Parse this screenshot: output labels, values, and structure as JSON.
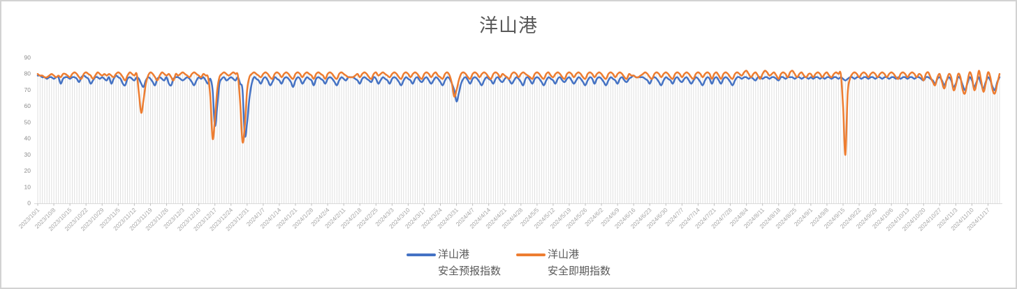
{
  "chart_title": "洋山港",
  "legend": {
    "items": [
      {
        "name": "洋山港 安全预报指数",
        "line1": "洋山港",
        "line2": "安全预报指数",
        "color": "#4472C4"
      },
      {
        "name": "洋山港 安全即期指数",
        "line1": "洋山港",
        "line2": "安全即期指数",
        "color": "#ED7D31"
      }
    ]
  },
  "chart_data": {
    "type": "line",
    "title": "洋山港",
    "legend_position": "bottom",
    "grid": "vertical drop line from each daily point to x-axis, no horizontal gridlines",
    "y_axis": {
      "ticks": [
        0,
        10,
        20,
        30,
        40,
        50,
        60,
        70,
        80,
        90
      ],
      "range": [
        0,
        90
      ]
    },
    "x_axis": {
      "tick_interval_days": 7,
      "points_per_series": 419,
      "tick_labels": [
        "2023/10/1",
        "2023/10/8",
        "2023/10/15",
        "2023/10/22",
        "2023/10/29",
        "2023/11/5",
        "2023/11/12",
        "2023/11/19",
        "2023/11/26",
        "2023/12/3",
        "2023/12/10",
        "2023/12/17",
        "2023/12/24",
        "2023/12/31",
        "2024/1/7",
        "2024/1/14",
        "2024/1/21",
        "2024/1/28",
        "2024/2/4",
        "2024/2/11",
        "2024/2/18",
        "2024/2/25",
        "2024/3/3",
        "2024/3/10",
        "2024/3/17",
        "2024/3/24",
        "2024/3/31",
        "2024/4/7",
        "2024/4/14",
        "2024/4/21",
        "2024/4/28",
        "2024/5/5",
        "2024/5/12",
        "2024/5/19",
        "2024/5/26",
        "2024/6/2",
        "2024/6/9",
        "2024/6/16",
        "2024/6/23",
        "2024/6/30",
        "2024/7/7",
        "2024/7/14",
        "2024/7/21",
        "2024/7/28",
        "2024/8/4",
        "2024/8/11",
        "2024/8/18",
        "2024/8/25",
        "2024/9/1",
        "2024/9/8",
        "2024/9/15",
        "2024/9/22",
        "2024/9/29",
        "2024/10/6",
        "2024/10/13",
        "2024/10/20",
        "2024/10/27",
        "2024/11/3",
        "2024/11/10",
        "2024/11/17"
      ]
    },
    "series": [
      {
        "name": "洋山港 安全预报指数",
        "color": "#4472C4",
        "values": [
          79,
          79,
          78,
          78,
          77,
          78,
          78,
          77,
          78,
          78,
          74,
          77,
          78,
          78,
          77,
          78,
          78,
          77,
          75,
          78,
          79,
          78,
          77,
          74,
          76,
          78,
          78,
          77,
          78,
          77,
          76,
          78,
          74,
          77,
          79,
          78,
          77,
          74,
          73,
          77,
          78,
          77,
          76,
          78,
          77,
          74,
          72,
          76,
          78,
          77,
          75,
          73,
          77,
          78,
          77,
          76,
          78,
          74,
          73,
          77,
          78,
          78,
          77,
          76,
          77,
          78,
          77,
          75,
          73,
          76,
          78,
          77,
          78,
          76,
          74,
          77,
          70,
          48,
          60,
          74,
          77,
          78,
          76,
          77,
          78,
          77,
          76,
          78,
          74,
          70,
          42,
          50,
          65,
          74,
          78,
          77,
          76,
          74,
          77,
          78,
          76,
          73,
          75,
          78,
          77,
          76,
          74,
          77,
          78,
          77,
          75,
          72,
          76,
          78,
          77,
          74,
          76,
          78,
          77,
          76,
          73,
          77,
          78,
          77,
          76,
          74,
          77,
          78,
          77,
          75,
          73,
          76,
          78,
          77,
          76,
          78,
          78,
          78,
          77,
          76,
          74,
          77,
          78,
          77,
          76,
          75,
          78,
          77,
          74,
          76,
          78,
          77,
          76,
          74,
          77,
          78,
          77,
          75,
          73,
          76,
          78,
          77,
          76,
          74,
          77,
          78,
          76,
          75,
          77,
          78,
          76,
          74,
          76,
          78,
          77,
          75,
          73,
          76,
          78,
          77,
          74,
          70,
          63,
          68,
          74,
          77,
          78,
          76,
          74,
          77,
          78,
          77,
          75,
          73,
          76,
          78,
          77,
          76,
          74,
          77,
          78,
          76,
          75,
          77,
          78,
          76,
          74,
          76,
          78,
          77,
          75,
          73,
          77,
          78,
          76,
          74,
          77,
          78,
          77,
          75,
          73,
          76,
          78,
          77,
          76,
          74,
          77,
          78,
          76,
          75,
          77,
          78,
          76,
          74,
          76,
          78,
          77,
          75,
          73,
          76,
          78,
          77,
          74,
          77,
          78,
          77,
          75,
          73,
          76,
          78,
          77,
          76,
          74,
          77,
          78,
          76,
          75,
          77,
          78,
          79,
          78,
          78,
          78,
          78,
          77,
          76,
          74,
          77,
          78,
          77,
          75,
          73,
          76,
          78,
          77,
          76,
          74,
          77,
          78,
          76,
          75,
          77,
          78,
          76,
          74,
          76,
          78,
          77,
          75,
          73,
          76,
          78,
          77,
          74,
          77,
          78,
          76,
          74,
          77,
          78,
          77,
          75,
          73,
          76,
          78,
          78,
          77,
          78,
          78,
          77,
          78,
          77,
          76,
          78,
          78,
          77,
          78,
          78,
          77,
          78,
          78,
          77,
          76,
          78,
          78,
          77,
          78,
          78,
          78,
          77,
          78,
          78,
          77,
          78,
          78,
          77,
          78,
          77,
          78,
          78,
          77,
          78,
          77,
          78,
          78,
          77,
          78,
          78,
          77,
          78,
          77,
          76,
          77,
          78,
          78,
          77,
          78,
          78,
          77,
          78,
          78,
          77,
          78,
          78,
          77,
          78,
          78,
          77,
          78,
          78,
          77,
          78,
          78,
          77,
          78,
          77,
          78,
          78,
          77,
          78,
          78,
          77,
          78,
          78,
          77,
          76,
          78,
          78,
          77,
          76,
          74,
          77,
          78,
          76,
          73,
          76,
          78,
          76,
          72,
          74,
          78,
          77,
          73,
          70,
          74,
          78,
          76,
          72,
          75,
          78,
          74,
          71,
          75,
          78,
          76,
          72,
          70,
          75,
          78
        ]
      },
      {
        "name": "洋山港 安全即期指数",
        "color": "#ED7D31",
        "values": [
          80,
          79,
          79,
          78,
          78,
          79,
          80,
          79,
          78,
          79,
          78,
          80,
          80,
          79,
          78,
          80,
          81,
          80,
          78,
          77,
          80,
          81,
          80,
          79,
          77,
          79,
          81,
          80,
          79,
          80,
          79,
          80,
          79,
          78,
          80,
          81,
          80,
          78,
          76,
          79,
          81,
          80,
          79,
          80,
          68,
          56,
          64,
          74,
          79,
          81,
          80,
          78,
          76,
          79,
          81,
          80,
          79,
          80,
          78,
          76,
          80,
          79,
          80,
          81,
          80,
          79,
          78,
          80,
          81,
          80,
          79,
          78,
          80,
          79,
          78,
          66,
          40,
          52,
          70,
          78,
          80,
          81,
          80,
          79,
          80,
          81,
          80,
          79,
          62,
          38,
          48,
          70,
          78,
          80,
          81,
          80,
          79,
          78,
          80,
          81,
          80,
          78,
          77,
          80,
          81,
          80,
          78,
          80,
          81,
          80,
          78,
          77,
          80,
          81,
          80,
          78,
          80,
          81,
          80,
          79,
          77,
          80,
          81,
          80,
          79,
          77,
          80,
          81,
          80,
          78,
          77,
          80,
          81,
          80,
          79,
          78,
          78,
          78,
          79,
          80,
          78,
          80,
          81,
          80,
          78,
          77,
          80,
          81,
          79,
          80,
          81,
          80,
          79,
          78,
          80,
          81,
          80,
          78,
          77,
          80,
          81,
          80,
          78,
          80,
          81,
          80,
          78,
          77,
          80,
          81,
          80,
          78,
          80,
          81,
          79,
          78,
          77,
          80,
          81,
          79,
          74,
          66,
          70,
          76,
          80,
          81,
          80,
          78,
          77,
          80,
          81,
          80,
          78,
          80,
          81,
          80,
          78,
          77,
          80,
          81,
          80,
          78,
          80,
          79,
          78,
          77,
          80,
          81,
          80,
          78,
          80,
          81,
          80,
          79,
          78,
          77,
          80,
          81,
          80,
          78,
          77,
          80,
          81,
          79,
          78,
          80,
          81,
          80,
          78,
          77,
          80,
          81,
          80,
          78,
          80,
          81,
          80,
          78,
          77,
          80,
          81,
          80,
          78,
          80,
          81,
          80,
          78,
          77,
          80,
          81,
          80,
          78,
          80,
          81,
          80,
          78,
          77,
          80,
          79,
          79,
          78,
          78,
          79,
          80,
          81,
          80,
          78,
          77,
          80,
          81,
          80,
          78,
          80,
          81,
          80,
          78,
          77,
          80,
          81,
          80,
          78,
          80,
          81,
          80,
          78,
          77,
          80,
          81,
          80,
          78,
          80,
          81,
          80,
          77,
          80,
          81,
          79,
          77,
          80,
          81,
          80,
          78,
          77,
          80,
          81,
          80,
          79,
          81,
          82,
          80,
          78,
          80,
          81,
          79,
          77,
          80,
          82,
          81,
          79,
          80,
          81,
          79,
          77,
          80,
          81,
          80,
          78,
          81,
          82,
          80,
          78,
          80,
          81,
          79,
          78,
          80,
          80,
          78,
          80,
          81,
          80,
          78,
          80,
          81,
          79,
          78,
          80,
          81,
          80,
          80,
          60,
          30,
          68,
          77,
          80,
          81,
          80,
          78,
          80,
          81,
          80,
          78,
          80,
          81,
          80,
          78,
          80,
          81,
          80,
          78,
          80,
          81,
          80,
          78,
          77,
          80,
          81,
          80,
          78,
          80,
          81,
          80,
          78,
          80,
          79,
          76,
          80,
          81,
          78,
          75,
          73,
          78,
          80,
          75,
          71,
          76,
          80,
          78,
          70,
          73,
          80,
          78,
          70,
          68,
          75,
          81,
          78,
          70,
          74,
          82,
          76,
          69,
          74,
          81,
          78,
          70,
          68,
          74,
          80
        ]
      }
    ],
    "style": {
      "drop_line_color": "#d9d9d9",
      "axis_line_color": "#d9d9d9",
      "tick_mark_color": "#bfbfbf",
      "y_label_color": "#8c8c8c",
      "x_label_color": "#a6a6a6",
      "title_color": "#595959",
      "legend_text_color": "#595959"
    }
  }
}
